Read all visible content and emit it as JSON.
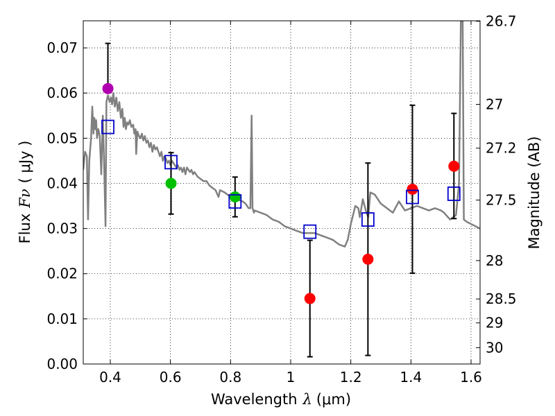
{
  "chart_data": {
    "type": "scatter",
    "xlabel": "Wavelength",
    "xlabel_symbol": "λ",
    "xlabel_unit": "(μm)",
    "ylabel": "Flux",
    "ylabel_symbol": "Fν",
    "ylabel_unit": "( μJy )",
    "right_ylabel": "Magnitude (AB)",
    "xlim": [
      0.31,
      1.63
    ],
    "ylim": [
      0.0,
      0.076
    ],
    "x_ticks": [
      0.4,
      0.6,
      0.8,
      1.0,
      1.2,
      1.4,
      1.6
    ],
    "x_tick_labels": [
      "0.4",
      "0.6",
      "0.8",
      "1",
      "1.2",
      "1.4",
      "1.6"
    ],
    "y_ticks": [
      0.0,
      0.01,
      0.02,
      0.03,
      0.04,
      0.05,
      0.06,
      0.07
    ],
    "y_tick_labels": [
      "0.00",
      "0.01",
      "0.02",
      "0.03",
      "0.04",
      "0.05",
      "0.06",
      "0.07"
    ],
    "right_ticks": [
      {
        "label": "26.7",
        "flux": 0.0759
      },
      {
        "label": "27",
        "flux": 0.0575
      },
      {
        "label": "27.2",
        "flux": 0.0478
      },
      {
        "label": "27.5",
        "flux": 0.0363
      },
      {
        "label": "28",
        "flux": 0.0229
      },
      {
        "label": "28.5",
        "flux": 0.0144
      },
      {
        "label": "29",
        "flux": 0.0091
      },
      {
        "label": "30",
        "flux": 0.0036
      }
    ],
    "grid": true,
    "colors": {
      "template": "#808080",
      "model": "#0000cc",
      "measurement_red": "#ff0000",
      "measurement_green": "#00c000",
      "measurement_magenta": "#b000b0",
      "errorbar": "#000000"
    },
    "measurements": [
      {
        "x": 0.392,
        "y": 0.061,
        "ylo": 0.061,
        "yhi": 0.071,
        "color": "magenta"
      },
      {
        "x": 0.602,
        "y": 0.04,
        "ylo": 0.0332,
        "yhi": 0.0468,
        "color": "green"
      },
      {
        "x": 0.815,
        "y": 0.037,
        "ylo": 0.0326,
        "yhi": 0.0414,
        "color": "green"
      },
      {
        "x": 1.064,
        "y": 0.0145,
        "ylo": 0.0016,
        "yhi": 0.0274,
        "color": "red"
      },
      {
        "x": 1.257,
        "y": 0.0232,
        "ylo": 0.0019,
        "yhi": 0.0445,
        "color": "red"
      },
      {
        "x": 1.405,
        "y": 0.0387,
        "ylo": 0.0201,
        "yhi": 0.0573,
        "color": "red"
      },
      {
        "x": 1.543,
        "y": 0.0438,
        "ylo": 0.0322,
        "yhi": 0.0555,
        "color": "red"
      }
    ],
    "model_points": [
      {
        "x": 0.392,
        "y": 0.0525
      },
      {
        "x": 0.602,
        "y": 0.0447
      },
      {
        "x": 0.815,
        "y": 0.036
      },
      {
        "x": 1.064,
        "y": 0.0293
      },
      {
        "x": 1.257,
        "y": 0.032
      },
      {
        "x": 1.405,
        "y": 0.037
      },
      {
        "x": 1.543,
        "y": 0.0377
      }
    ],
    "template_spectrum": [
      [
        0.31,
        0.043
      ],
      [
        0.316,
        0.047
      ],
      [
        0.322,
        0.046
      ],
      [
        0.326,
        0.032
      ],
      [
        0.33,
        0.045
      ],
      [
        0.336,
        0.05
      ],
      [
        0.34,
        0.057
      ],
      [
        0.344,
        0.051
      ],
      [
        0.347,
        0.0545
      ],
      [
        0.35,
        0.052
      ],
      [
        0.353,
        0.054
      ],
      [
        0.356,
        0.05
      ],
      [
        0.36,
        0.052
      ],
      [
        0.365,
        0.0505
      ],
      [
        0.37,
        0.042
      ],
      [
        0.375,
        0.055
      ],
      [
        0.38,
        0.043
      ],
      [
        0.384,
        0.0305
      ],
      [
        0.387,
        0.058
      ],
      [
        0.392,
        0.0595
      ],
      [
        0.398,
        0.058
      ],
      [
        0.402,
        0.059
      ],
      [
        0.406,
        0.0575
      ],
      [
        0.41,
        0.06
      ],
      [
        0.415,
        0.057
      ],
      [
        0.42,
        0.059
      ],
      [
        0.425,
        0.056
      ],
      [
        0.43,
        0.058
      ],
      [
        0.435,
        0.0545
      ],
      [
        0.44,
        0.0565
      ],
      [
        0.444,
        0.0525
      ],
      [
        0.448,
        0.0545
      ],
      [
        0.452,
        0.052
      ],
      [
        0.456,
        0.0535
      ],
      [
        0.46,
        0.053
      ],
      [
        0.465,
        0.054
      ],
      [
        0.47,
        0.0525
      ],
      [
        0.476,
        0.053
      ],
      [
        0.48,
        0.051
      ],
      [
        0.484,
        0.052
      ],
      [
        0.486,
        0.0465
      ],
      [
        0.49,
        0.0515
      ],
      [
        0.495,
        0.0505
      ],
      [
        0.5,
        0.05
      ],
      [
        0.505,
        0.051
      ],
      [
        0.51,
        0.0495
      ],
      [
        0.515,
        0.0505
      ],
      [
        0.52,
        0.049
      ],
      [
        0.525,
        0.0495
      ],
      [
        0.53,
        0.048
      ],
      [
        0.535,
        0.049
      ],
      [
        0.54,
        0.047
      ],
      [
        0.545,
        0.0485
      ],
      [
        0.55,
        0.0475
      ],
      [
        0.555,
        0.048
      ],
      [
        0.56,
        0.047
      ],
      [
        0.565,
        0.046
      ],
      [
        0.57,
        0.047
      ],
      [
        0.575,
        0.045
      ],
      [
        0.58,
        0.046
      ],
      [
        0.585,
        0.0455
      ],
      [
        0.59,
        0.0445
      ],
      [
        0.595,
        0.045
      ],
      [
        0.6,
        0.044
      ],
      [
        0.605,
        0.045
      ],
      [
        0.61,
        0.0445
      ],
      [
        0.615,
        0.044
      ],
      [
        0.62,
        0.0435
      ],
      [
        0.625,
        0.044
      ],
      [
        0.63,
        0.043
      ],
      [
        0.635,
        0.0435
      ],
      [
        0.64,
        0.0425
      ],
      [
        0.645,
        0.0435
      ],
      [
        0.65,
        0.042
      ],
      [
        0.655,
        0.0435
      ],
      [
        0.66,
        0.043
      ],
      [
        0.665,
        0.0425
      ],
      [
        0.67,
        0.043
      ],
      [
        0.675,
        0.042
      ],
      [
        0.68,
        0.0425
      ],
      [
        0.69,
        0.0415
      ],
      [
        0.7,
        0.041
      ],
      [
        0.71,
        0.0405
      ],
      [
        0.72,
        0.0405
      ],
      [
        0.73,
        0.0395
      ],
      [
        0.74,
        0.039
      ],
      [
        0.75,
        0.0385
      ],
      [
        0.76,
        0.037
      ],
      [
        0.765,
        0.0385
      ],
      [
        0.78,
        0.038
      ],
      [
        0.8,
        0.037
      ],
      [
        0.82,
        0.0365
      ],
      [
        0.84,
        0.036
      ],
      [
        0.85,
        0.0355
      ],
      [
        0.86,
        0.0345
      ],
      [
        0.866,
        0.0345
      ],
      [
        0.87,
        0.055
      ],
      [
        0.873,
        0.0345
      ],
      [
        0.878,
        0.0335
      ],
      [
        0.88,
        0.034
      ],
      [
        0.9,
        0.0335
      ],
      [
        0.92,
        0.033
      ],
      [
        0.94,
        0.032
      ],
      [
        0.96,
        0.0315
      ],
      [
        0.98,
        0.0305
      ],
      [
        1.0,
        0.03
      ],
      [
        1.02,
        0.0295
      ],
      [
        1.04,
        0.029
      ],
      [
        1.06,
        0.029
      ],
      [
        1.08,
        0.029
      ],
      [
        1.1,
        0.0285
      ],
      [
        1.12,
        0.028
      ],
      [
        1.14,
        0.0275
      ],
      [
        1.16,
        0.0265
      ],
      [
        1.18,
        0.026
      ],
      [
        1.19,
        0.0275
      ],
      [
        1.2,
        0.031
      ],
      [
        1.215,
        0.035
      ],
      [
        1.225,
        0.0345
      ],
      [
        1.23,
        0.0325
      ],
      [
        1.24,
        0.0365
      ],
      [
        1.25,
        0.034
      ],
      [
        1.258,
        0.0325
      ],
      [
        1.265,
        0.038
      ],
      [
        1.28,
        0.0375
      ],
      [
        1.3,
        0.0355
      ],
      [
        1.32,
        0.0345
      ],
      [
        1.34,
        0.0335
      ],
      [
        1.36,
        0.036
      ],
      [
        1.38,
        0.034
      ],
      [
        1.4,
        0.0345
      ],
      [
        1.42,
        0.035
      ],
      [
        1.44,
        0.0345
      ],
      [
        1.46,
        0.034
      ],
      [
        1.48,
        0.0345
      ],
      [
        1.5,
        0.034
      ],
      [
        1.51,
        0.0335
      ],
      [
        1.53,
        0.032
      ],
      [
        1.55,
        0.033
      ],
      [
        1.56,
        0.04
      ],
      [
        1.566,
        0.076
      ],
      [
        1.572,
        0.076
      ],
      [
        1.576,
        0.032
      ],
      [
        1.585,
        0.0315
      ],
      [
        1.6,
        0.031
      ],
      [
        1.63,
        0.03
      ]
    ]
  }
}
